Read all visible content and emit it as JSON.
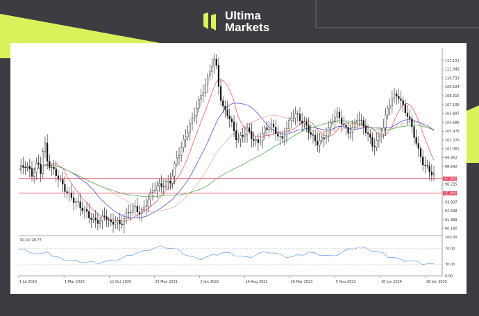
{
  "brand": {
    "name_line1": "Ultima",
    "name_line2": "Markets",
    "colors": {
      "lime": "#d7f25a",
      "dark_bg": "#3b3d41"
    }
  },
  "chart_data": {
    "type": "candlestick",
    "price_axis": {
      "ticks": [
        "113.151",
        "111.942",
        "110.733",
        "109.524",
        "108.315",
        "107.106",
        "105.897",
        "104.688",
        "103.479",
        "102.270",
        "101.061",
        "99.852",
        "98.642",
        "96.235",
        "93.807",
        "92.598",
        "91.389",
        "90.180"
      ],
      "range": [
        89.5,
        114.2
      ]
    },
    "levels": [
      {
        "label": "97.000",
        "value": 97.0,
        "color": "#e0405a"
      },
      {
        "label": "95.000",
        "value": 95.0,
        "color": "#e0405a"
      }
    ],
    "dates": [
      "1 Jul 2019",
      "1 Mar 2020",
      "11 Oct 2020",
      "23 May 2021",
      "2 Jan 2022",
      "14 Aug 2022",
      "26 Mar 2023",
      "5 Nov 2023",
      "16 Jun 2024",
      "26 Jan 2025"
    ],
    "close_path": [
      [
        0,
        98.2
      ],
      [
        8,
        98.6
      ],
      [
        16,
        97.5
      ],
      [
        22,
        99.5
      ],
      [
        26,
        98.2
      ],
      [
        30,
        102.5
      ],
      [
        34,
        99.0
      ],
      [
        40,
        98.0
      ],
      [
        48,
        97.0
      ],
      [
        56,
        95.5
      ],
      [
        64,
        94.0
      ],
      [
        72,
        93.0
      ],
      [
        80,
        92.5
      ],
      [
        88,
        91.5
      ],
      [
        96,
        91.0
      ],
      [
        102,
        91.8
      ],
      [
        108,
        90.8
      ],
      [
        114,
        91.5
      ],
      [
        120,
        90.8
      ],
      [
        128,
        92.0
      ],
      [
        136,
        93.0
      ],
      [
        144,
        92.5
      ],
      [
        152,
        94.0
      ],
      [
        160,
        95.5
      ],
      [
        168,
        96.0
      ],
      [
        174,
        96.5
      ],
      [
        180,
        97.0
      ],
      [
        186,
        99.5
      ],
      [
        192,
        101.0
      ],
      [
        198,
        103.0
      ],
      [
        204,
        105.0
      ],
      [
        210,
        107.0
      ],
      [
        216,
        108.5
      ],
      [
        222,
        110.0
      ],
      [
        228,
        112.5
      ],
      [
        232,
        113.5
      ],
      [
        236,
        110.0
      ],
      [
        240,
        107.0
      ],
      [
        246,
        106.0
      ],
      [
        252,
        104.0
      ],
      [
        258,
        102.0
      ],
      [
        264,
        103.0
      ],
      [
        270,
        104.0
      ],
      [
        276,
        102.5
      ],
      [
        282,
        101.5
      ],
      [
        290,
        103.5
      ],
      [
        298,
        104.5
      ],
      [
        304,
        103.5
      ],
      [
        310,
        102.0
      ],
      [
        316,
        103.5
      ],
      [
        322,
        105.5
      ],
      [
        328,
        106.0
      ],
      [
        334,
        105.0
      ],
      [
        340,
        104.0
      ],
      [
        346,
        102.5
      ],
      [
        352,
        101.8
      ],
      [
        358,
        102.5
      ],
      [
        364,
        103.5
      ],
      [
        370,
        105.0
      ],
      [
        376,
        105.5
      ],
      [
        382,
        104.5
      ],
      [
        388,
        103.5
      ],
      [
        394,
        104.0
      ],
      [
        400,
        105.5
      ],
      [
        406,
        104.0
      ],
      [
        412,
        103.0
      ],
      [
        418,
        101.5
      ],
      [
        424,
        102.5
      ],
      [
        430,
        104.0
      ],
      [
        436,
        106.5
      ],
      [
        442,
        108.0
      ],
      [
        448,
        108.5
      ],
      [
        454,
        107.0
      ],
      [
        460,
        105.5
      ],
      [
        466,
        103.0
      ],
      [
        472,
        100.5
      ],
      [
        478,
        99.0
      ],
      [
        484,
        98.5
      ],
      [
        490,
        97.5
      ]
    ],
    "moving_averages": [
      {
        "name": "ma-fast",
        "color": "#e94a4a",
        "period": 10
      },
      {
        "name": "ma-mid",
        "color": "#3b3bd6",
        "period": 24
      },
      {
        "name": "ma-slow",
        "color": "#f0a0a0",
        "period": 40
      },
      {
        "name": "ma-long",
        "color": "#3aa83a",
        "period": 70
      }
    ],
    "indicator": {
      "label": "SI(14) 28.77",
      "ticks": [
        "100.00",
        "70.00",
        "30.00",
        "0.00"
      ],
      "color": "#4b8de0",
      "values": [
        68,
        66,
        62,
        58,
        55,
        64,
        50,
        46,
        43,
        40,
        38,
        36,
        35,
        35,
        34,
        36,
        38,
        40,
        44,
        50,
        56,
        60,
        63,
        68,
        72,
        75,
        74,
        70,
        66,
        58,
        50,
        46,
        44,
        48,
        52,
        56,
        60,
        58,
        54,
        50,
        47,
        50,
        55,
        60,
        62,
        58,
        54,
        50,
        48,
        52,
        56,
        60,
        58,
        55,
        52,
        50,
        55,
        62,
        68,
        72,
        74,
        70,
        66,
        62,
        58,
        50,
        46,
        42,
        40,
        38,
        36,
        32,
        30,
        29
      ]
    }
  }
}
